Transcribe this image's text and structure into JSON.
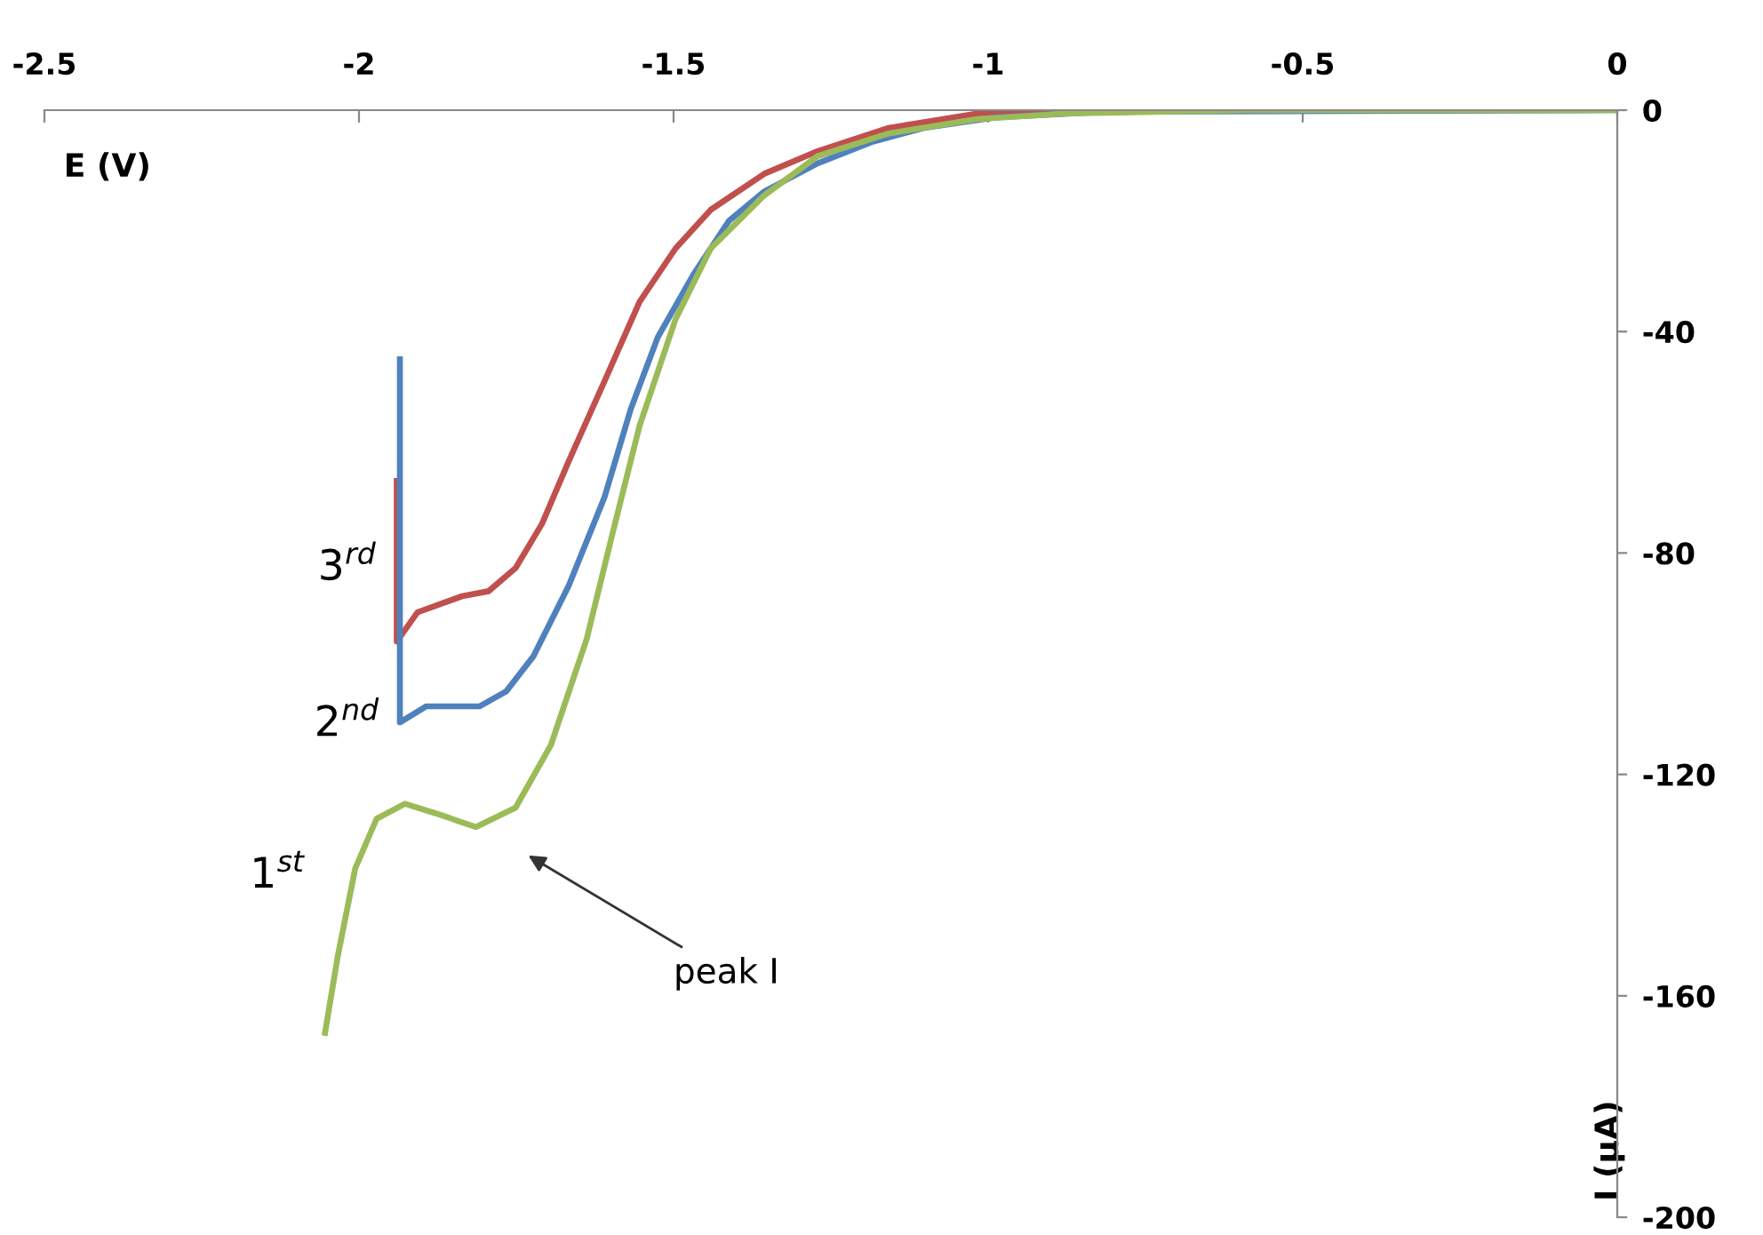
{
  "chart_data": {
    "type": "line",
    "xlabel": "E (V)",
    "ylabel": "I (µA)",
    "xlim": [
      -2.5,
      0
    ],
    "ylim": [
      -200,
      0
    ],
    "xticks": [
      -2.5,
      -2,
      -1.5,
      -1,
      -0.5,
      0
    ],
    "yticks": [
      0,
      -40,
      -80,
      -120,
      -160,
      -200
    ],
    "grid": false,
    "legend": false,
    "marker": "none",
    "line_style": "solid",
    "annotations": [
      "peak I"
    ],
    "series": [
      {
        "name": "3$^{rd}$",
        "color": "#c0504d",
        "x": [
          -1.94,
          -1.94,
          -1.907,
          -1.836,
          -1.794,
          -1.751,
          -1.709,
          -1.667,
          -1.61,
          -1.554,
          -1.497,
          -1.441,
          -1.356,
          -1.271,
          -1.158,
          -1.017,
          -0.884
        ],
        "values": [
          -67,
          -96,
          -90.7,
          -87.8,
          -86.9,
          -82.7,
          -74.7,
          -63.5,
          -49,
          -34.6,
          -25,
          -18,
          -11.5,
          -7.4,
          -3.2,
          -0.6,
          0
        ]
      },
      {
        "name": "2$^{nd}$",
        "color": "#4f81bd",
        "x": [
          -1.935,
          -1.935,
          -1.893,
          -1.808,
          -1.766,
          -1.723,
          -1.667,
          -1.61,
          -1.568,
          -1.525,
          -1.469,
          -1.412,
          -1.356,
          -1.271,
          -1.186,
          -1.102,
          -0.989,
          -0.819,
          0
        ],
        "values": [
          -45,
          -110.6,
          -107.7,
          -107.7,
          -105,
          -98.7,
          -86,
          -70,
          -54,
          -41,
          -29.8,
          -20,
          -14.7,
          -9.6,
          -5.8,
          -3.2,
          -1.3,
          -0.3,
          0
        ]
      },
      {
        "name": "1$^{st}$",
        "color": "#9bbb59",
        "x": [
          -2.054,
          -2.034,
          -2.006,
          -1.972,
          -1.927,
          -1.879,
          -1.814,
          -1.751,
          -1.695,
          -1.638,
          -1.596,
          -1.554,
          -1.497,
          -1.441,
          -1.356,
          -1.271,
          -1.158,
          -1.017,
          -0.876,
          -0.59,
          0
        ],
        "values": [
          -166.7,
          -153,
          -137,
          -128,
          -125.3,
          -127,
          -129.5,
          -126,
          -114.7,
          -95.5,
          -76,
          -57,
          -37.8,
          -25,
          -15.4,
          -8.3,
          -4.2,
          -1.6,
          -0.6,
          0,
          0
        ]
      }
    ]
  }
}
